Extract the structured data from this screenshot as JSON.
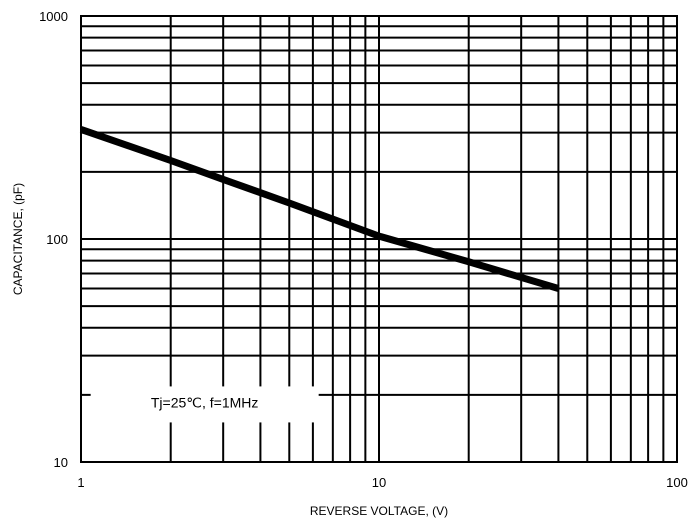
{
  "chart_data": {
    "type": "line",
    "title": "",
    "xlabel": "REVERSE VOLTAGE, (V)",
    "ylabel": "CAPACITANCE, (pF)",
    "x_scale": "log",
    "y_scale": "log",
    "xlim": [
      1,
      100
    ],
    "ylim": [
      10,
      1000
    ],
    "grid": true,
    "x_ticks": [
      {
        "value": 1,
        "label": "1"
      },
      {
        "value": 10,
        "label": "10"
      },
      {
        "value": 100,
        "label": "100"
      }
    ],
    "y_ticks": [
      {
        "value": 10,
        "label": "10"
      },
      {
        "value": 100,
        "label": "100"
      },
      {
        "value": 1000,
        "label": "1000"
      }
    ],
    "series": [
      {
        "color": "#000000",
        "x": [
          1,
          2,
          3,
          5,
          10,
          20,
          40
        ],
        "y": [
          310,
          225,
          185,
          145,
          103,
          79,
          60
        ]
      }
    ],
    "annotations": [
      {
        "text": "Tj=25℃, f=1MHz",
        "x": 2.6,
        "y": 18.5
      }
    ]
  }
}
